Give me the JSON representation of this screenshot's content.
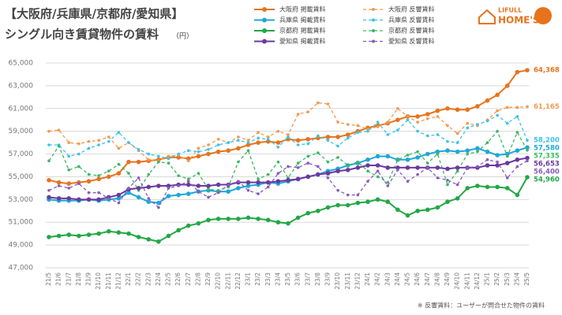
{
  "chart_data": {
    "type": "line",
    "title": "【大阪府/兵庫県/京都府/愛知県】",
    "subtitle": "シングル向き賃貸物件の賃料",
    "unit": "（円）",
    "footnote": "※ 反響賃料：ユーザーが問合せた物件の賃料",
    "brand": [
      "LIFULL",
      "HOME'S"
    ],
    "categories": [
      "21/5",
      "21/6",
      "21/7",
      "21/8",
      "21/9",
      "21/10",
      "21/11",
      "21/12",
      "22/1",
      "22/2",
      "22/3",
      "22/4",
      "22/5",
      "22/6",
      "22/7",
      "22/8",
      "22/9",
      "22/10",
      "22/11",
      "22/12",
      "23/1",
      "23/2",
      "23/3",
      "23/4",
      "23/5",
      "23/6",
      "23/7",
      "23/8",
      "23/9",
      "23/10",
      "23/11",
      "23/12",
      "24/1",
      "24/2",
      "24/3",
      "24/4",
      "24/5",
      "24/6",
      "24/7",
      "24/8",
      "24/9",
      "24/10",
      "24/11",
      "24/12",
      "25/1",
      "25/2",
      "25/3",
      "25/4",
      "25/5"
    ],
    "ylim": [
      47000,
      65000
    ],
    "yticks": [
      {
        "value": 47000,
        "label": "47,000"
      },
      {
        "value": 49000,
        "label": "49,000"
      },
      {
        "value": 51000,
        "label": "51,000"
      },
      {
        "value": 53000,
        "label": "53,000"
      },
      {
        "value": 55000,
        "label": "55,000"
      },
      {
        "value": 57000,
        "label": "57,000"
      },
      {
        "value": 59000,
        "label": "59,000"
      },
      {
        "value": 61000,
        "label": "61,000"
      },
      {
        "value": 63000,
        "label": "63,000"
      },
      {
        "value": 65000,
        "label": "65,000"
      }
    ],
    "grid": true,
    "series": [
      {
        "name": "大阪府 掲載賃料",
        "color": "#e8731c",
        "dashed": false,
        "values": [
          54700,
          54500,
          54400,
          54500,
          54600,
          54800,
          55000,
          55300,
          56300,
          56300,
          56400,
          56500,
          56700,
          56700,
          56600,
          56800,
          57000,
          57200,
          57300,
          57500,
          57800,
          58000,
          58100,
          58000,
          58300,
          58200,
          58300,
          58400,
          58500,
          58500,
          58700,
          59000,
          59300,
          59500,
          59700,
          60000,
          60300,
          60300,
          60500,
          60800,
          61000,
          60900,
          60900,
          61200,
          61700,
          62200,
          63000,
          64200,
          64368
        ],
        "value_labels": [
          null,
          null,
          null,
          null,
          null,
          null,
          null,
          null,
          null,
          null,
          null,
          null,
          null,
          null,
          null,
          null,
          null,
          null,
          null,
          null,
          null,
          null,
          null,
          null,
          null,
          null,
          null,
          null,
          null,
          null,
          null,
          null,
          null,
          null,
          null,
          null,
          null,
          null,
          null,
          null,
          null,
          null,
          null,
          null,
          null,
          null,
          null,
          null,
          "64,368"
        ]
      },
      {
        "name": "大阪府 反響賃料",
        "color": "#f29a4f",
        "dashed": true,
        "values": [
          59000,
          59100,
          58000,
          57900,
          58100,
          58200,
          58500,
          57500,
          58000,
          57300,
          56500,
          56400,
          56800,
          56900,
          56400,
          57500,
          57800,
          58300,
          58000,
          58500,
          58200,
          58900,
          58500,
          59000,
          58700,
          60500,
          60700,
          61500,
          61400,
          59800,
          59600,
          59500,
          59200,
          59400,
          59800,
          61000,
          60300,
          59800,
          60100,
          60300,
          59500,
          58800,
          59700,
          59500,
          60000,
          60800,
          61100,
          61100,
          61165
        ],
        "value_labels": [
          null,
          null,
          null,
          null,
          null,
          null,
          null,
          null,
          null,
          null,
          null,
          null,
          null,
          null,
          null,
          null,
          null,
          null,
          null,
          null,
          null,
          null,
          null,
          null,
          null,
          null,
          null,
          null,
          null,
          null,
          null,
          null,
          null,
          null,
          null,
          null,
          null,
          null,
          null,
          null,
          null,
          null,
          null,
          null,
          null,
          null,
          null,
          null,
          "61,165"
        ]
      },
      {
        "name": "兵庫県 掲載賃料",
        "color": "#1fa7d8",
        "dashed": false,
        "values": [
          53000,
          52900,
          52900,
          52900,
          53000,
          52900,
          53000,
          53100,
          53600,
          53200,
          52800,
          52700,
          53300,
          53400,
          53500,
          53700,
          53800,
          53700,
          53700,
          54000,
          54200,
          54300,
          54500,
          54400,
          54600,
          54800,
          55000,
          55200,
          55500,
          55700,
          56000,
          56200,
          56500,
          56800,
          56800,
          56500,
          56500,
          56700,
          57000,
          57200,
          57300,
          57200,
          57300,
          57500,
          57200,
          56900,
          57000,
          57300,
          57580
        ],
        "value_labels": [
          null,
          null,
          null,
          null,
          null,
          null,
          null,
          null,
          null,
          null,
          null,
          null,
          null,
          null,
          null,
          null,
          null,
          null,
          null,
          null,
          null,
          null,
          null,
          null,
          null,
          null,
          null,
          null,
          null,
          null,
          null,
          null,
          null,
          null,
          null,
          null,
          null,
          null,
          null,
          null,
          null,
          null,
          null,
          null,
          null,
          null,
          null,
          null,
          "57,580"
        ]
      },
      {
        "name": "兵庫県 反響賃料",
        "color": "#3cc3ea",
        "dashed": true,
        "values": [
          57800,
          57800,
          56800,
          57000,
          57500,
          57800,
          58100,
          58900,
          58000,
          57400,
          57000,
          56800,
          56600,
          57000,
          57300,
          57200,
          57400,
          57800,
          58000,
          58200,
          58000,
          58400,
          58300,
          57600,
          58500,
          57800,
          57900,
          58600,
          58200,
          57700,
          58400,
          58900,
          59000,
          59800,
          58700,
          59100,
          60000,
          59000,
          58600,
          58700,
          58100,
          58000,
          59300,
          59600,
          59900,
          60400,
          59700,
          60300,
          58200
        ],
        "value_labels": [
          null,
          null,
          null,
          null,
          null,
          null,
          null,
          null,
          null,
          null,
          null,
          null,
          null,
          null,
          null,
          null,
          null,
          null,
          null,
          null,
          null,
          null,
          null,
          null,
          null,
          null,
          null,
          null,
          null,
          null,
          null,
          null,
          null,
          null,
          null,
          null,
          null,
          null,
          null,
          null,
          null,
          null,
          null,
          null,
          null,
          null,
          null,
          null,
          "58,200"
        ]
      },
      {
        "name": "京都府 掲載賃料",
        "color": "#22a745",
        "dashed": false,
        "values": [
          49700,
          49800,
          49900,
          49800,
          49900,
          50000,
          50200,
          50100,
          50000,
          49700,
          49500,
          49300,
          49800,
          50300,
          50700,
          50900,
          51200,
          51300,
          51300,
          51300,
          51400,
          51300,
          51200,
          51000,
          50900,
          51400,
          51800,
          52000,
          52300,
          52500,
          52500,
          52700,
          52800,
          53000,
          52800,
          52100,
          51600,
          52000,
          52100,
          52300,
          52800,
          53100,
          54000,
          54200,
          54100,
          54100,
          54000,
          53400,
          54960
        ],
        "value_labels": [
          null,
          null,
          null,
          null,
          null,
          null,
          null,
          null,
          null,
          null,
          null,
          null,
          null,
          null,
          null,
          null,
          null,
          null,
          null,
          null,
          null,
          null,
          null,
          null,
          null,
          null,
          null,
          null,
          null,
          null,
          null,
          null,
          null,
          null,
          null,
          null,
          null,
          null,
          null,
          null,
          null,
          null,
          null,
          null,
          null,
          null,
          null,
          null,
          "54,960"
        ]
      },
      {
        "name": "京都府 反響賃料",
        "color": "#3bb862",
        "dashed": true,
        "values": [
          56400,
          57700,
          55600,
          55900,
          55200,
          55100,
          55500,
          56100,
          55300,
          53800,
          55200,
          56300,
          56200,
          55100,
          54800,
          55300,
          53900,
          53800,
          54100,
          56300,
          57300,
          54800,
          55200,
          56300,
          54900,
          56200,
          56800,
          57100,
          56300,
          56700,
          56000,
          56300,
          55500,
          55000,
          54500,
          56500,
          56900,
          57200,
          56200,
          57000,
          54300,
          55500,
          57000,
          57200,
          58000,
          59000,
          56800,
          58900,
          57335
        ],
        "value_labels": [
          null,
          null,
          null,
          null,
          null,
          null,
          null,
          null,
          null,
          null,
          null,
          null,
          null,
          null,
          null,
          null,
          null,
          null,
          null,
          null,
          null,
          null,
          null,
          null,
          null,
          null,
          null,
          null,
          null,
          null,
          null,
          null,
          null,
          null,
          null,
          null,
          null,
          null,
          null,
          null,
          null,
          null,
          null,
          null,
          null,
          null,
          null,
          null,
          "57,335"
        ]
      },
      {
        "name": "愛知県 掲載賃料",
        "color": "#6b3a9e",
        "dashed": false,
        "values": [
          53200,
          53100,
          53100,
          53000,
          53000,
          53000,
          53200,
          53400,
          53900,
          54000,
          54100,
          54200,
          54200,
          54300,
          54300,
          54200,
          54200,
          54300,
          54300,
          54500,
          54500,
          54500,
          54500,
          54600,
          54700,
          54800,
          55000,
          55200,
          55300,
          55500,
          55600,
          55800,
          56000,
          56000,
          55800,
          55800,
          55800,
          55800,
          55800,
          55800,
          55700,
          55800,
          55800,
          55800,
          56000,
          56000,
          56200,
          56500,
          56653
        ],
        "value_labels": [
          null,
          null,
          null,
          null,
          null,
          null,
          null,
          null,
          null,
          null,
          null,
          null,
          null,
          null,
          null,
          null,
          null,
          null,
          null,
          null,
          null,
          null,
          null,
          null,
          null,
          null,
          null,
          null,
          null,
          null,
          null,
          null,
          null,
          null,
          null,
          null,
          null,
          null,
          null,
          null,
          null,
          null,
          null,
          null,
          null,
          null,
          null,
          null,
          "56,653"
        ]
      },
      {
        "name": "愛知県 反響賃料",
        "color": "#8a5cbd",
        "dashed": true,
        "values": [
          53800,
          54200,
          54000,
          54400,
          53600,
          53600,
          53100,
          52700,
          54000,
          54900,
          53100,
          52300,
          54000,
          54200,
          54600,
          53700,
          53200,
          53600,
          54300,
          54600,
          53800,
          53500,
          54100,
          55300,
          55900,
          55800,
          56200,
          55900,
          54900,
          53800,
          53400,
          53400,
          54600,
          55500,
          54200,
          55600,
          54600,
          55200,
          55800,
          54900,
          54700,
          54300,
          55800,
          55900,
          56500,
          56300,
          54900,
          55900,
          56400
        ],
        "value_labels": [
          null,
          null,
          null,
          null,
          null,
          null,
          null,
          null,
          null,
          null,
          null,
          null,
          null,
          null,
          null,
          null,
          null,
          null,
          null,
          null,
          null,
          null,
          null,
          null,
          null,
          null,
          null,
          null,
          null,
          null,
          null,
          null,
          null,
          null,
          null,
          null,
          null,
          null,
          null,
          null,
          null,
          null,
          null,
          null,
          null,
          null,
          null,
          null,
          "56,400"
        ]
      }
    ]
  }
}
